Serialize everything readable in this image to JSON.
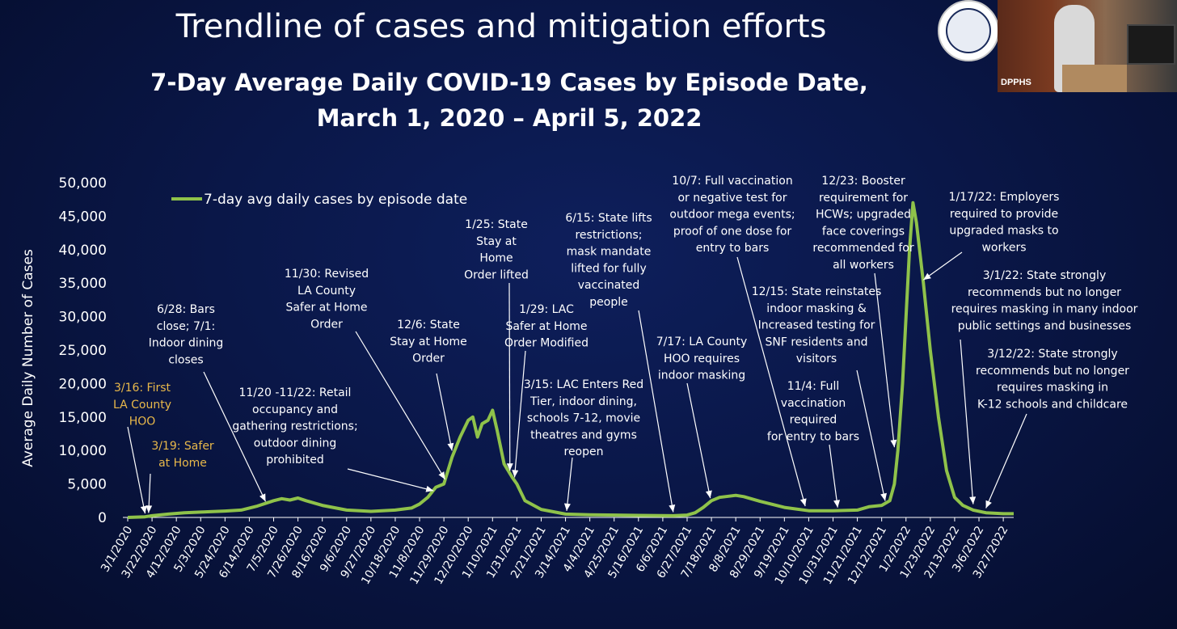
{
  "slide": {
    "title": "Trendline of cases and mitigation efforts",
    "subtitle_line1": "7-Day Average Daily COVID-19 Cases by Episode Date,",
    "subtitle_line2": "March 1, 2020 – April 5, 2022",
    "video_label": "DPPHS"
  },
  "colors": {
    "background": "#0a1748",
    "series": "#8fc24a",
    "text": "#ffffff",
    "highlight_annotation": "#e8b84a"
  },
  "chart_data": {
    "type": "line",
    "title": "7-Day Average Daily COVID-19 Cases by Episode Date, March 1, 2020 – April 5, 2022",
    "xlabel": "",
    "ylabel": "Average Daily Number of Cases",
    "ylim": [
      0,
      50000
    ],
    "yticks": [
      "0",
      "5,000",
      "10,000",
      "15,000",
      "20,000",
      "25,000",
      "30,000",
      "35,000",
      "40,000",
      "45,000",
      "50,000"
    ],
    "ytick_values": [
      0,
      5000,
      10000,
      15000,
      20000,
      25000,
      30000,
      35000,
      40000,
      45000,
      50000
    ],
    "xlim": [
      "2020-03-01",
      "2022-04-05"
    ],
    "xticks": [
      "3/1/2020",
      "3/22/2020",
      "4/12/2020",
      "5/3/2020",
      "5/24/2020",
      "6/14/2020",
      "7/5/2020",
      "7/26/2020",
      "8/16/2020",
      "9/6/2020",
      "9/27/2020",
      "10/18/2020",
      "11/8/2020",
      "11/29/2020",
      "12/20/2020",
      "1/10/2021",
      "1/31/2021",
      "2/21/2021",
      "3/14/2021",
      "4/4/2021",
      "4/25/2021",
      "5/16/2021",
      "6/6/2021",
      "6/27/2021",
      "7/18/2021",
      "8/8/2021",
      "8/29/2021",
      "9/19/2021",
      "10/10/2021",
      "10/31/2021",
      "11/21/2021",
      "12/12/2021",
      "1/2/2022",
      "1/23/2022",
      "2/13/2022",
      "3/6/2022",
      "3/27/2022"
    ],
    "grid": false,
    "legend_position": "top-left",
    "series": [
      {
        "name": "7-day avg daily cases by episode date",
        "points": [
          [
            "2020-03-01",
            0
          ],
          [
            "2020-03-16",
            100
          ],
          [
            "2020-03-22",
            250
          ],
          [
            "2020-04-05",
            500
          ],
          [
            "2020-04-19",
            700
          ],
          [
            "2020-05-03",
            800
          ],
          [
            "2020-05-24",
            950
          ],
          [
            "2020-06-07",
            1100
          ],
          [
            "2020-06-21",
            1700
          ],
          [
            "2020-07-05",
            2500
          ],
          [
            "2020-07-12",
            2800
          ],
          [
            "2020-07-19",
            2600
          ],
          [
            "2020-07-26",
            2900
          ],
          [
            "2020-08-02",
            2500
          ],
          [
            "2020-08-16",
            1800
          ],
          [
            "2020-09-06",
            1100
          ],
          [
            "2020-09-27",
            900
          ],
          [
            "2020-10-18",
            1100
          ],
          [
            "2020-11-01",
            1400
          ],
          [
            "2020-11-08",
            2000
          ],
          [
            "2020-11-15",
            3000
          ],
          [
            "2020-11-22",
            4500
          ],
          [
            "2020-11-29",
            5000
          ],
          [
            "2020-12-06",
            9000
          ],
          [
            "2020-12-13",
            12000
          ],
          [
            "2020-12-20",
            14500
          ],
          [
            "2020-12-24",
            15000
          ],
          [
            "2020-12-28",
            12000
          ],
          [
            "2021-01-01",
            14000
          ],
          [
            "2021-01-06",
            14500
          ],
          [
            "2021-01-10",
            16000
          ],
          [
            "2021-01-14",
            13000
          ],
          [
            "2021-01-20",
            8000
          ],
          [
            "2021-01-27",
            6000
          ],
          [
            "2021-01-31",
            5000
          ],
          [
            "2021-02-07",
            2500
          ],
          [
            "2021-02-21",
            1200
          ],
          [
            "2021-03-14",
            500
          ],
          [
            "2021-04-04",
            400
          ],
          [
            "2021-05-16",
            300
          ],
          [
            "2021-06-15",
            250
          ],
          [
            "2021-06-27",
            350
          ],
          [
            "2021-07-04",
            700
          ],
          [
            "2021-07-11",
            1500
          ],
          [
            "2021-07-18",
            2500
          ],
          [
            "2021-07-25",
            3000
          ],
          [
            "2021-08-08",
            3300
          ],
          [
            "2021-08-15",
            3100
          ],
          [
            "2021-08-29",
            2400
          ],
          [
            "2021-09-19",
            1500
          ],
          [
            "2021-10-10",
            1000
          ],
          [
            "2021-10-31",
            1000
          ],
          [
            "2021-11-21",
            1100
          ],
          [
            "2021-12-01",
            1600
          ],
          [
            "2021-12-12",
            1800
          ],
          [
            "2021-12-19",
            2500
          ],
          [
            "2021-12-23",
            5000
          ],
          [
            "2021-12-26",
            10000
          ],
          [
            "2021-12-30",
            20000
          ],
          [
            "2022-01-02",
            30000
          ],
          [
            "2022-01-05",
            40000
          ],
          [
            "2022-01-08",
            47000
          ],
          [
            "2022-01-11",
            44000
          ],
          [
            "2022-01-17",
            35000
          ],
          [
            "2022-01-23",
            25000
          ],
          [
            "2022-01-30",
            15000
          ],
          [
            "2022-02-06",
            7000
          ],
          [
            "2022-02-13",
            3000
          ],
          [
            "2022-02-20",
            1800
          ],
          [
            "2022-03-01",
            1100
          ],
          [
            "2022-03-12",
            700
          ],
          [
            "2022-03-27",
            550
          ],
          [
            "2022-04-05",
            550
          ]
        ]
      }
    ],
    "annotations": [
      {
        "lines": [
          "3/16: First",
          "LA County",
          "HOO"
        ],
        "highlight": true,
        "anchor": [
          "2020-03-16",
          100
        ]
      },
      {
        "lines": [
          "3/19: Safer",
          "at Home"
        ],
        "highlight": true,
        "anchor": [
          "2020-03-19",
          200
        ]
      },
      {
        "lines": [
          "6/28: Bars",
          "close; 7/1:",
          "Indoor dining",
          "closes"
        ],
        "highlight": false,
        "anchor": [
          "2020-06-28",
          1900
        ]
      },
      {
        "lines": [
          "11/20 -11/22: Retail",
          "occupancy and",
          "gathering restrictions;",
          "outdoor dining",
          "prohibited"
        ],
        "highlight": false,
        "anchor": [
          "2020-11-20",
          3500
        ]
      },
      {
        "lines": [
          "11/30: Revised",
          "LA County",
          "Safer at Home",
          "Order"
        ],
        "highlight": false,
        "anchor": [
          "2020-11-30",
          5200
        ]
      },
      {
        "lines": [
          "12/6:  State",
          "Stay at Home",
          "Order"
        ],
        "highlight": false,
        "anchor": [
          "2020-12-06",
          9500
        ]
      },
      {
        "lines": [
          "1/25:  State",
          "Stay at",
          "Home",
          "Order lifted"
        ],
        "highlight": false,
        "anchor": [
          "2021-01-25",
          6500
        ]
      },
      {
        "lines": [
          "1/29:  LAC",
          "Safer at Home",
          "Order Modified"
        ],
        "highlight": false,
        "anchor": [
          "2021-01-29",
          5500
        ]
      },
      {
        "lines": [
          "3/15: LAC Enters Red",
          "Tier, indoor dining,",
          "schools 7-12, movie",
          "theatres and gyms",
          "reopen"
        ],
        "highlight": false,
        "anchor": [
          "2021-03-15",
          500
        ]
      },
      {
        "lines": [
          "6/15: State lifts",
          "restrictions;",
          "mask mandate",
          "lifted for fully",
          "vaccinated",
          "people"
        ],
        "highlight": false,
        "anchor": [
          "2021-06-15",
          300
        ]
      },
      {
        "lines": [
          "7/17: LA County",
          "HOO requires",
          "indoor masking"
        ],
        "highlight": false,
        "anchor": [
          "2021-07-17",
          2400
        ]
      },
      {
        "lines": [
          "10/7: Full vaccination",
          "or negative test for",
          "outdoor mega events;",
          "proof of one dose for",
          "entry to bars"
        ],
        "highlight": false,
        "anchor": [
          "2021-10-07",
          1200
        ]
      },
      {
        "lines": [
          "11/4:  Full",
          "vaccination",
          "required",
          "for entry to bars"
        ],
        "highlight": false,
        "anchor": [
          "2021-11-04",
          1000
        ]
      },
      {
        "lines": [
          "12/15: State reinstates",
          "indoor masking &",
          "Increased testing for",
          "SNF residents and",
          "visitors"
        ],
        "highlight": false,
        "anchor": [
          "2021-12-15",
          2000
        ]
      },
      {
        "lines": [
          "12/23: Booster",
          "requirement for",
          "HCWs; upgraded",
          "face coverings",
          "recommended for",
          "all workers"
        ],
        "highlight": false,
        "anchor": [
          "2021-12-23",
          10000
        ]
      },
      {
        "lines": [
          "1/17/22: Employers",
          "required to provide",
          "upgraded masks to",
          "workers"
        ],
        "highlight": false,
        "anchor": [
          "2022-01-17",
          35000
        ]
      },
      {
        "lines": [
          "3/1/22: State strongly",
          "recommends but no longer",
          "requires masking in many indoor",
          "public settings and businesses"
        ],
        "highlight": false,
        "anchor": [
          "2022-03-01",
          1500
        ]
      },
      {
        "lines": [
          "3/12/22: State strongly",
          "recommends but no longer",
          "requires masking in",
          "K-12 schools and childcare"
        ],
        "highlight": false,
        "anchor": [
          "2022-03-12",
          900
        ]
      }
    ]
  }
}
